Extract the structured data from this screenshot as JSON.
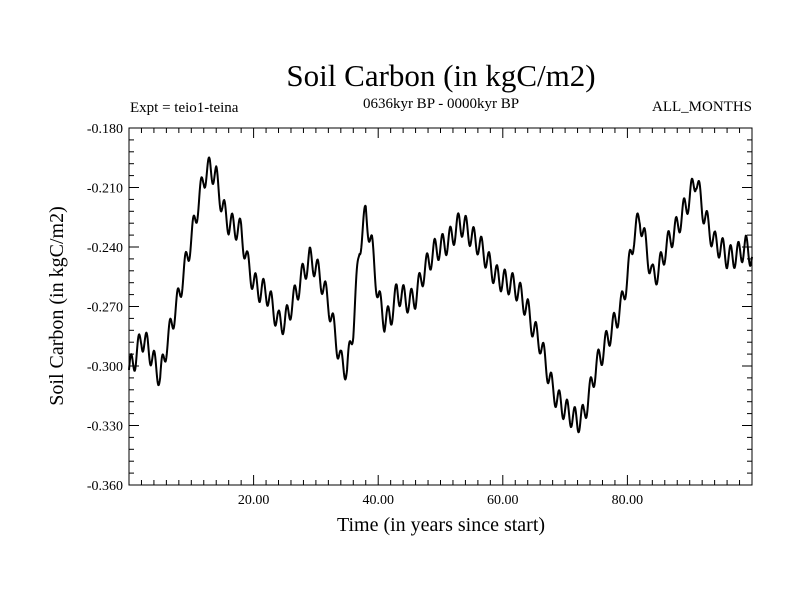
{
  "chart_data": {
    "type": "line",
    "title": "Soil Carbon (in kgC/m2)",
    "subtitle": "0636kyr BP - 0000kyr BP",
    "left_label": "Expt = teio1-teina",
    "right_label": "ALL_MONTHS",
    "xlabel": "Time (in years since start)",
    "ylabel": "Soil Carbon (in kgC/m2)",
    "xlim": [
      0,
      100
    ],
    "ylim": [
      -0.36,
      -0.18
    ],
    "x_ticks": [
      20,
      40,
      60,
      80
    ],
    "x_tick_labels": [
      "20.00",
      "40.00",
      "60.00",
      "80.00"
    ],
    "y_ticks": [
      -0.36,
      -0.33,
      -0.3,
      -0.27,
      -0.24,
      -0.21,
      -0.18
    ],
    "y_tick_labels": [
      "-0.360",
      "-0.330",
      "-0.300",
      "-0.270",
      "-0.240",
      "-0.210",
      "-0.180"
    ],
    "line_color": "#000000",
    "series": [
      {
        "name": "Soil Carbon",
        "oscillation_amplitude": 0.006,
        "oscillation_period": 1.25,
        "trend": [
          [
            0,
            -0.302
          ],
          [
            1,
            -0.296
          ],
          [
            2,
            -0.286
          ],
          [
            3,
            -0.29
          ],
          [
            4,
            -0.298
          ],
          [
            5,
            -0.306
          ],
          [
            6,
            -0.29
          ],
          [
            7,
            -0.277
          ],
          [
            8,
            -0.265
          ],
          [
            9,
            -0.25
          ],
          [
            10,
            -0.236
          ],
          [
            11,
            -0.22
          ],
          [
            12,
            -0.205
          ],
          [
            13,
            -0.2
          ],
          [
            14,
            -0.205
          ],
          [
            15,
            -0.22
          ],
          [
            16,
            -0.228
          ],
          [
            17,
            -0.23
          ],
          [
            18,
            -0.232
          ],
          [
            19,
            -0.248
          ],
          [
            20,
            -0.258
          ],
          [
            21,
            -0.262
          ],
          [
            22,
            -0.262
          ],
          [
            23,
            -0.27
          ],
          [
            24,
            -0.278
          ],
          [
            25,
            -0.278
          ],
          [
            26,
            -0.27
          ],
          [
            27,
            -0.262
          ],
          [
            28,
            -0.253
          ],
          [
            29,
            -0.246
          ],
          [
            30,
            -0.25
          ],
          [
            31,
            -0.258
          ],
          [
            32,
            -0.268
          ],
          [
            33,
            -0.283
          ],
          [
            34,
            -0.298
          ],
          [
            35,
            -0.302
          ],
          [
            36,
            -0.28
          ],
          [
            37,
            -0.24
          ],
          [
            38,
            -0.223
          ],
          [
            39,
            -0.24
          ],
          [
            40,
            -0.265
          ],
          [
            41,
            -0.277
          ],
          [
            42,
            -0.275
          ],
          [
            43,
            -0.263
          ],
          [
            44,
            -0.265
          ],
          [
            45,
            -0.268
          ],
          [
            46,
            -0.265
          ],
          [
            47,
            -0.255
          ],
          [
            48,
            -0.248
          ],
          [
            49,
            -0.242
          ],
          [
            50,
            -0.24
          ],
          [
            51,
            -0.238
          ],
          [
            52,
            -0.234
          ],
          [
            53,
            -0.228
          ],
          [
            54,
            -0.23
          ],
          [
            55,
            -0.235
          ],
          [
            56,
            -0.238
          ],
          [
            57,
            -0.243
          ],
          [
            58,
            -0.25
          ],
          [
            59,
            -0.255
          ],
          [
            60,
            -0.257
          ],
          [
            61,
            -0.258
          ],
          [
            62,
            -0.26
          ],
          [
            63,
            -0.265
          ],
          [
            64,
            -0.272
          ],
          [
            65,
            -0.282
          ],
          [
            66,
            -0.288
          ],
          [
            67,
            -0.3
          ],
          [
            68,
            -0.312
          ],
          [
            69,
            -0.318
          ],
          [
            70,
            -0.322
          ],
          [
            71,
            -0.325
          ],
          [
            72,
            -0.328
          ],
          [
            73,
            -0.325
          ],
          [
            74,
            -0.313
          ],
          [
            75,
            -0.3
          ],
          [
            76,
            -0.293
          ],
          [
            77,
            -0.285
          ],
          [
            78,
            -0.278
          ],
          [
            79,
            -0.27
          ],
          [
            80,
            -0.255
          ],
          [
            81,
            -0.235
          ],
          [
            82,
            -0.225
          ],
          [
            83,
            -0.24
          ],
          [
            84,
            -0.255
          ],
          [
            85,
            -0.252
          ],
          [
            86,
            -0.242
          ],
          [
            87,
            -0.235
          ],
          [
            88,
            -0.23
          ],
          [
            89,
            -0.222
          ],
          [
            90,
            -0.215
          ],
          [
            91,
            -0.205
          ],
          [
            92,
            -0.22
          ],
          [
            93,
            -0.23
          ],
          [
            94,
            -0.238
          ],
          [
            95,
            -0.24
          ],
          [
            96,
            -0.245
          ],
          [
            97,
            -0.245
          ],
          [
            98,
            -0.243
          ],
          [
            99,
            -0.24
          ],
          [
            100,
            -0.245
          ]
        ]
      }
    ]
  }
}
